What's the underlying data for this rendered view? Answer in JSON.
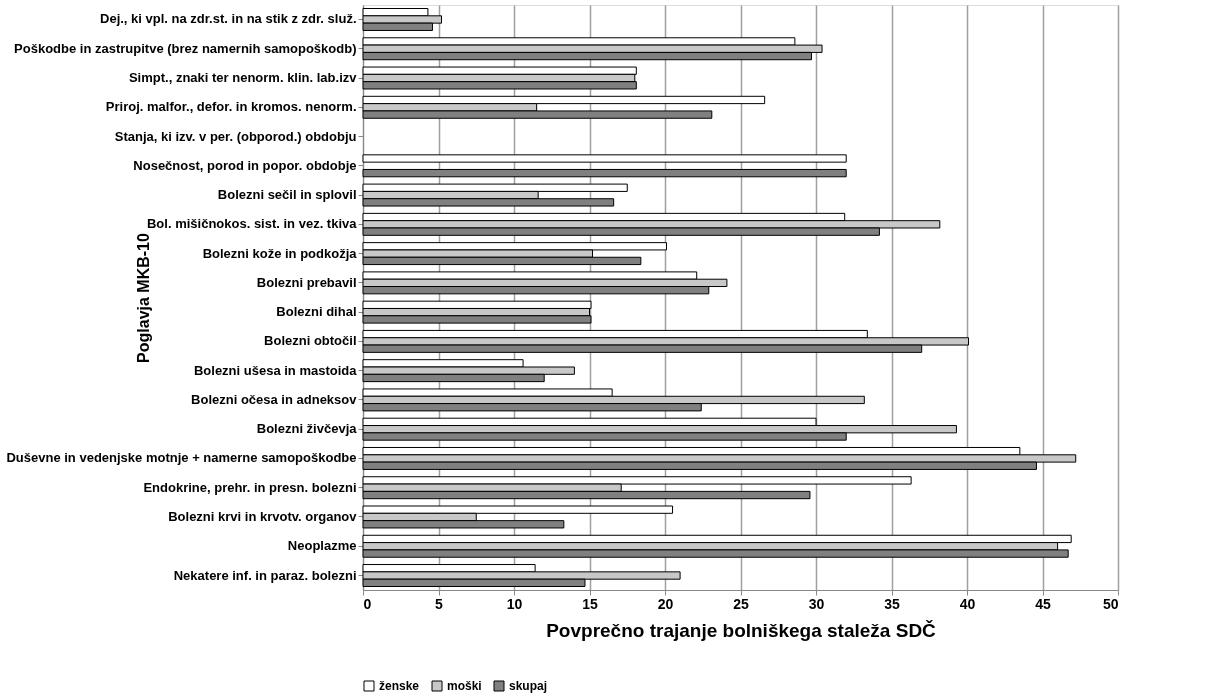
{
  "chart_data": {
    "type": "bar",
    "orientation": "horizontal",
    "xlabel": "Povprečno trajanje bolniškega staleža SDČ",
    "ylabel": "Poglavja MKB-10",
    "categories": [
      "Dej., ki vpl. na zdr.st. in na stik z zdr. služ.",
      "Poškodbe in zastrupitve (brez namernih samopoškodb)",
      "Simpt., znaki ter nenorm. klin. lab.izv",
      "Priroj. malfor., defor. in kromos. nenorm.",
      "Stanja, ki izv. v per. (obporod.) obdobju",
      "Nosečnost, porod in popor. obdobje",
      "Bolezni sečil in splovil",
      "Bol. mišičnokos. sist. in vez. tkiva",
      "Bolezni kože in podkožja",
      "Bolezni prebavil",
      "Bolezni dihal",
      "Bolezni obtočil",
      "Bolezni ušesa in mastoida",
      "Bolezni očesa in adneksov",
      "Bolezni živčevja",
      "Duševne in vedenjske motnje + namerne samopoškodbe",
      "Endokrine, prehr. in presn. bolezni",
      "Bolezni krvi in krvotv. organov",
      "Neoplazme",
      "Nekatere inf. in paraz. bolezni"
    ],
    "series": [
      {
        "name": "ženske",
        "color": "#ffffff",
        "values": [
          4.3,
          28.6,
          18.1,
          26.6,
          null,
          32.0,
          17.5,
          31.9,
          20.1,
          22.1,
          15.1,
          33.4,
          10.6,
          16.5,
          30.0,
          43.5,
          36.3,
          20.5,
          46.9,
          11.4
        ]
      },
      {
        "name": "moški",
        "color": "#c8c8c8",
        "values": [
          5.2,
          30.4,
          18.0,
          11.5,
          null,
          null,
          11.6,
          38.2,
          15.2,
          24.1,
          15.0,
          40.1,
          14.0,
          33.2,
          39.3,
          47.2,
          17.1,
          7.5,
          46.0,
          21.0
        ]
      },
      {
        "name": "skupaj",
        "color": "#808080",
        "values": [
          4.6,
          29.7,
          18.1,
          23.1,
          null,
          32.0,
          16.6,
          34.2,
          18.4,
          22.9,
          15.1,
          37.0,
          12.0,
          22.4,
          32.0,
          44.6,
          29.6,
          13.3,
          46.7,
          14.7
        ]
      }
    ],
    "xlim": [
      0,
      50
    ],
    "xticks": [
      0,
      5,
      10,
      15,
      20,
      25,
      30,
      35,
      40,
      45,
      50
    ],
    "grid": "x",
    "legend": "bottom"
  }
}
